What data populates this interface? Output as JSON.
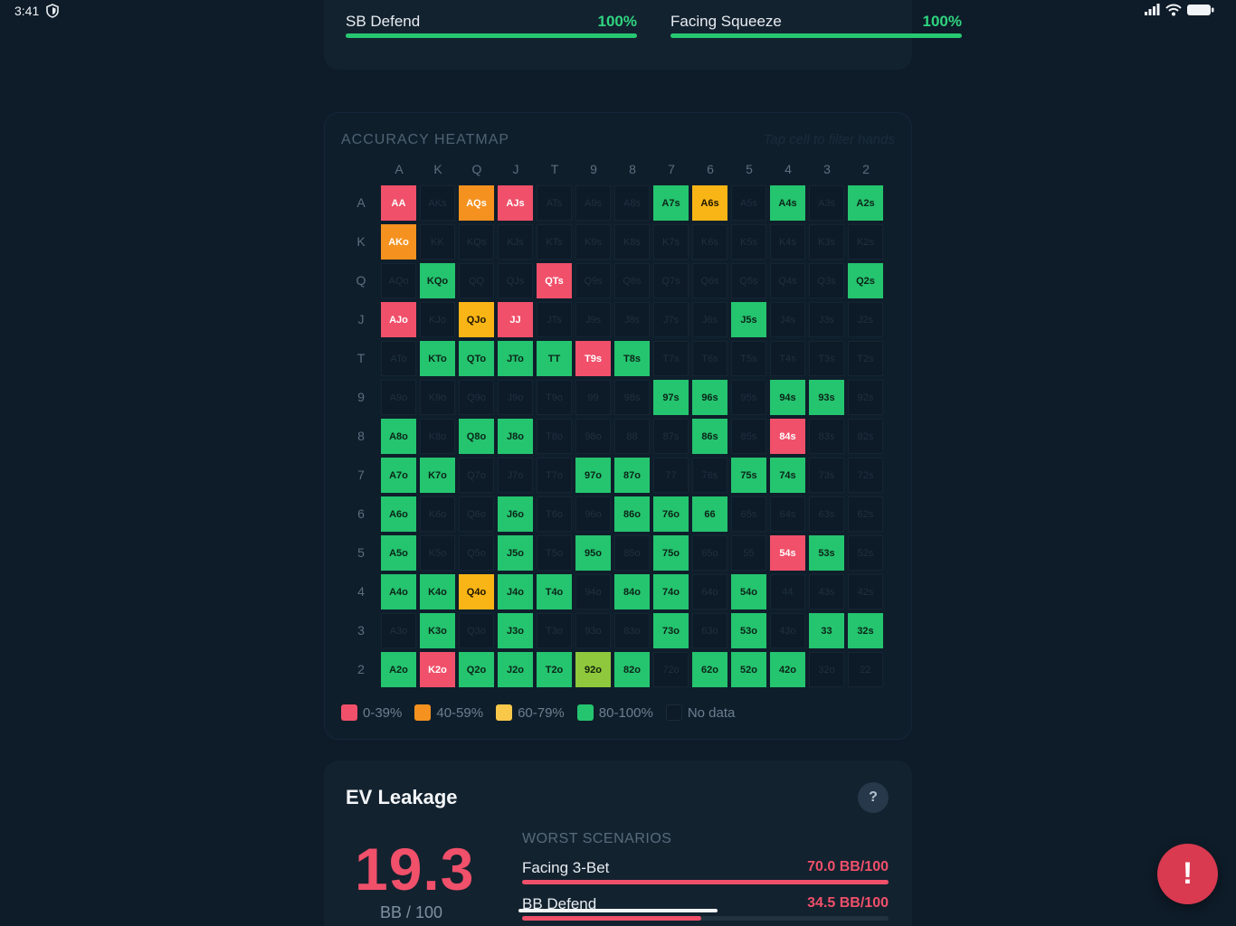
{
  "status_bar": {
    "time": "3:41"
  },
  "progress_items": [
    {
      "label": "SB Defend",
      "percent": "100%",
      "fill": 1.0
    },
    {
      "label": "Facing Squeeze",
      "percent": "100%",
      "fill": 1.0
    }
  ],
  "heatmap": {
    "title": "ACCURACY HEATMAP",
    "hint": "Tap cell to filter hands",
    "columns": [
      "A",
      "K",
      "Q",
      "J",
      "T",
      "9",
      "8",
      "7",
      "6",
      "5",
      "4",
      "3",
      "2"
    ],
    "rows": [
      "A",
      "K",
      "Q",
      "J",
      "T",
      "9",
      "8",
      "7",
      "6",
      "5",
      "4",
      "3",
      "2"
    ],
    "cells": [
      [
        "AA",
        "AKs",
        "AQs",
        "AJs",
        "ATs",
        "A9s",
        "A8s",
        "A7s",
        "A6s",
        "A5s",
        "A4s",
        "A3s",
        "A2s"
      ],
      [
        "AKo",
        "KK",
        "KQs",
        "KJs",
        "KTs",
        "K9s",
        "K8s",
        "K7s",
        "K6s",
        "K5s",
        "K4s",
        "K3s",
        "K2s"
      ],
      [
        "AQo",
        "KQo",
        "QQ",
        "QJs",
        "QTs",
        "Q9s",
        "Q8s",
        "Q7s",
        "Q6s",
        "Q5s",
        "Q4s",
        "Q3s",
        "Q2s"
      ],
      [
        "AJo",
        "KJo",
        "QJo",
        "JJ",
        "JTs",
        "J9s",
        "J8s",
        "J7s",
        "J6s",
        "J5s",
        "J4s",
        "J3s",
        "J2s"
      ],
      [
        "ATo",
        "KTo",
        "QTo",
        "JTo",
        "TT",
        "T9s",
        "T8s",
        "T7s",
        "T6s",
        "T5s",
        "T4s",
        "T3s",
        "T2s"
      ],
      [
        "A9o",
        "K9o",
        "Q9o",
        "J9o",
        "T9o",
        "99",
        "98s",
        "97s",
        "96s",
        "95s",
        "94s",
        "93s",
        "92s"
      ],
      [
        "A8o",
        "K8o",
        "Q8o",
        "J8o",
        "T8o",
        "98o",
        "88",
        "87s",
        "86s",
        "85s",
        "84s",
        "83s",
        "82s"
      ],
      [
        "A7o",
        "K7o",
        "Q7o",
        "J7o",
        "T7o",
        "97o",
        "87o",
        "77",
        "76s",
        "75s",
        "74s",
        "73s",
        "72s"
      ],
      [
        "A6o",
        "K6o",
        "Q6o",
        "J6o",
        "T6o",
        "96o",
        "86o",
        "76o",
        "66",
        "65s",
        "64s",
        "63s",
        "62s"
      ],
      [
        "A5o",
        "K5o",
        "Q5o",
        "J5o",
        "T5o",
        "95o",
        "85o",
        "75o",
        "65o",
        "55",
        "54s",
        "53s",
        "52s"
      ],
      [
        "A4o",
        "K4o",
        "Q4o",
        "J4o",
        "T4o",
        "94o",
        "84o",
        "74o",
        "64o",
        "54o",
        "44",
        "43s",
        "42s"
      ],
      [
        "A3o",
        "K3o",
        "Q3o",
        "J3o",
        "T3o",
        "93o",
        "83o",
        "73o",
        "63o",
        "53o",
        "43o",
        "33",
        "32s"
      ],
      [
        "A2o",
        "K2o",
        "Q2o",
        "J2o",
        "T2o",
        "92o",
        "82o",
        "72o",
        "62o",
        "52o",
        "42o",
        "32o",
        "22"
      ]
    ],
    "status": [
      [
        "r",
        "n",
        "o",
        "r",
        "n",
        "n",
        "n",
        "g",
        "a",
        "n",
        "g",
        "n",
        "g"
      ],
      [
        "o",
        "n",
        "n",
        "n",
        "n",
        "n",
        "n",
        "n",
        "n",
        "n",
        "n",
        "n",
        "n"
      ],
      [
        "n",
        "g",
        "n",
        "n",
        "r",
        "n",
        "n",
        "n",
        "n",
        "n",
        "n",
        "n",
        "g"
      ],
      [
        "r",
        "n",
        "a",
        "r",
        "n",
        "n",
        "n",
        "n",
        "n",
        "g",
        "n",
        "n",
        "n"
      ],
      [
        "n",
        "g",
        "g",
        "g",
        "g",
        "r",
        "g",
        "n",
        "n",
        "n",
        "n",
        "n",
        "n"
      ],
      [
        "n",
        "n",
        "n",
        "n",
        "n",
        "n",
        "n",
        "g",
        "g",
        "n",
        "g",
        "g",
        "n"
      ],
      [
        "g",
        "n",
        "g",
        "g",
        "n",
        "n",
        "n",
        "n",
        "g",
        "n",
        "r",
        "n",
        "n"
      ],
      [
        "g",
        "g",
        "n",
        "n",
        "n",
        "g",
        "g",
        "n",
        "n",
        "g",
        "g",
        "n",
        "n"
      ],
      [
        "g",
        "n",
        "n",
        "g",
        "n",
        "n",
        "g",
        "g",
        "g",
        "n",
        "n",
        "n",
        "n"
      ],
      [
        "g",
        "n",
        "n",
        "g",
        "n",
        "g",
        "n",
        "g",
        "n",
        "n",
        "r",
        "g",
        "n"
      ],
      [
        "g",
        "g",
        "a",
        "g",
        "g",
        "n",
        "g",
        "g",
        "n",
        "g",
        "n",
        "n",
        "n"
      ],
      [
        "n",
        "g",
        "n",
        "g",
        "n",
        "n",
        "n",
        "g",
        "n",
        "g",
        "n",
        "g",
        "g"
      ],
      [
        "g",
        "r",
        "g",
        "g",
        "g",
        "l",
        "g",
        "n",
        "g",
        "g",
        "g",
        "n",
        "n"
      ]
    ],
    "legend": [
      {
        "label": "0-39%",
        "color": "#f0506a"
      },
      {
        "label": "40-59%",
        "color": "#f5921f"
      },
      {
        "label": "60-79%",
        "color": "#f9c84a"
      },
      {
        "label": "80-100%",
        "color": "#25c46f"
      },
      {
        "label": "No data",
        "color": "#0d1a27"
      }
    ],
    "colors": {
      "red": "#f0506a",
      "orange": "#f5921f",
      "amber": "#f9b516",
      "green": "#25c46f",
      "lime": "#8fc83c",
      "nodata": "#0d1a27"
    }
  },
  "ev_leakage": {
    "title": "EV Leakage",
    "help": "?",
    "value": "19.3",
    "unit": "BB / 100",
    "worst_title": "WORST SCENARIOS",
    "scenarios": [
      {
        "label": "Facing 3-Bet",
        "value": "70.0 BB/100",
        "fill": 1.0
      },
      {
        "label": "BB Defend",
        "value": "34.5 BB/100",
        "fill": 0.49
      }
    ]
  },
  "fab": {
    "label": "!"
  },
  "icons": [
    "shield-icon",
    "signal-icon",
    "wifi-icon",
    "battery-icon",
    "help-icon",
    "alert-icon"
  ]
}
